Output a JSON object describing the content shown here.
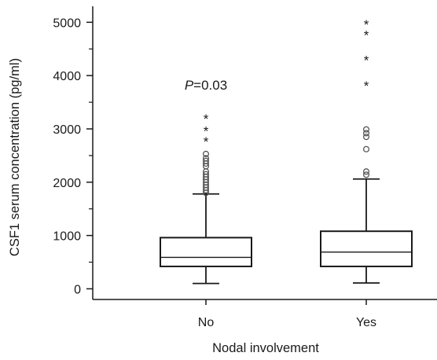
{
  "chart_data": {
    "type": "boxplot",
    "title": "",
    "xlabel": "Nodal involvement",
    "ylabel": "CSF1 serum concentration (pg/ml)",
    "ylim": [
      -200,
      5300
    ],
    "yticks": [
      0,
      1000,
      2000,
      3000,
      4000,
      5000
    ],
    "grid": false,
    "categories": [
      "No",
      "Yes"
    ],
    "boxes": [
      {
        "category": "No",
        "whisker_low": 100,
        "q1": 420,
        "median": 590,
        "q3": 960,
        "whisker_high": 1780,
        "outliers_circle": [
          1800,
          1850,
          1900,
          1950,
          2000,
          2050,
          2100,
          2150,
          2200,
          2300,
          2350,
          2400,
          2450,
          2530
        ],
        "outliers_star": [
          2850,
          3050,
          3280
        ]
      },
      {
        "category": "Yes",
        "whisker_low": 110,
        "q1": 420,
        "median": 690,
        "q3": 1080,
        "whisker_high": 2060,
        "outliers_circle": [
          2140,
          2200,
          2620,
          2850,
          2920,
          2990
        ],
        "outliers_star": [
          3900,
          4380,
          4850,
          5050
        ]
      }
    ],
    "annotation": {
      "italic_part": "P",
      "rest": "=0.03",
      "category": "No",
      "y": 4000
    }
  }
}
